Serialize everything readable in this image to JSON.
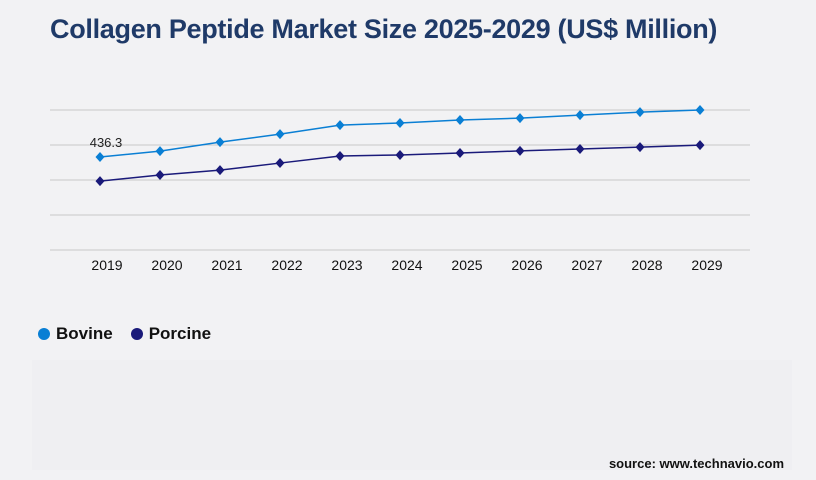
{
  "title": "Collagen Peptide Market Size 2025-2029 (US$ Million)",
  "source": "source: www.technavio.com",
  "colors": {
    "Bovine": "#0a7fd4",
    "Porcine": "#1a1a7a",
    "title": "#1f3a68",
    "grid": "#c8c8c8"
  },
  "chart_data": {
    "type": "line",
    "title": "Collagen Peptide Market Size 2025-2029 (US$ Million)",
    "categories": [
      "2019",
      "2020",
      "2021",
      "2022",
      "2023",
      "2024",
      "2025",
      "2026",
      "2027",
      "2028",
      "2029"
    ],
    "series": [
      {
        "name": "Bovine",
        "values": [
          436.3,
          464,
          506,
          544,
          586,
          596,
          610,
          619,
          633,
          647,
          657
        ]
      },
      {
        "name": "Porcine",
        "values": [
          323,
          352,
          375,
          408,
          441,
          446,
          455,
          465,
          474,
          483,
          492
        ]
      }
    ],
    "data_labels": [
      {
        "series": "Bovine",
        "category": "2019",
        "text": "436.3"
      }
    ],
    "ylim": [
      0,
      657
    ],
    "y_ticks_shown": false,
    "grid": true,
    "marker": "diamond",
    "legend": "bottom-left"
  }
}
